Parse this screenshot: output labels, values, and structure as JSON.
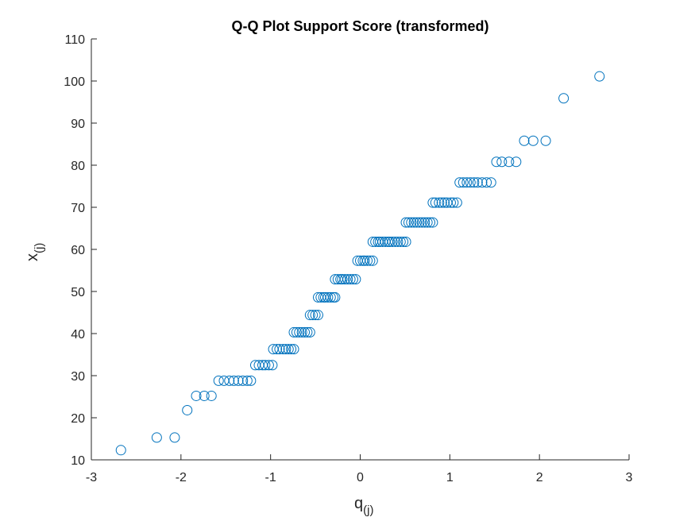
{
  "chart_data": {
    "type": "scatter",
    "title": "Q-Q Plot Support Score (transformed)",
    "xlabel": {
      "main": "q",
      "subscript": "(j)"
    },
    "ylabel": {
      "main": "x",
      "subscript": "(j)"
    },
    "xlim": [
      -3,
      3
    ],
    "ylim": [
      10,
      110
    ],
    "xticks": [
      -3,
      -2,
      -1,
      0,
      1,
      2,
      3
    ],
    "yticks": [
      10,
      20,
      30,
      40,
      50,
      60,
      70,
      80,
      90,
      100,
      110
    ],
    "grid": false,
    "marker": "circle-open",
    "series": [
      {
        "color": "#0072BD",
        "x": [
          -2.67,
          -2.27,
          -2.07,
          -1.93,
          -1.83,
          -1.74,
          -1.66,
          -1.58,
          -1.52,
          -1.46,
          -1.41,
          -1.36,
          -1.31,
          -1.26,
          -1.22,
          -1.17,
          -1.13,
          -1.09,
          -1.06,
          -1.02,
          -0.98,
          -0.97,
          -0.93,
          -0.9,
          -0.86,
          -0.83,
          -0.8,
          -0.77,
          -0.74,
          -0.74,
          -0.71,
          -0.68,
          -0.65,
          -0.62,
          -0.59,
          -0.56,
          -0.56,
          -0.53,
          -0.5,
          -0.47,
          -0.47,
          -0.44,
          -0.41,
          -0.39,
          -0.36,
          -0.33,
          -0.3,
          -0.28,
          -0.28,
          -0.25,
          -0.22,
          -0.2,
          -0.17,
          -0.14,
          -0.11,
          -0.08,
          -0.05,
          -0.03,
          0.0,
          0.03,
          0.05,
          0.08,
          0.11,
          0.14,
          0.14,
          0.17,
          0.2,
          0.22,
          0.25,
          0.28,
          0.31,
          0.33,
          0.36,
          0.39,
          0.42,
          0.45,
          0.48,
          0.51,
          0.51,
          0.54,
          0.57,
          0.6,
          0.63,
          0.66,
          0.69,
          0.72,
          0.75,
          0.78,
          0.81,
          0.81,
          0.84,
          0.88,
          0.91,
          0.94,
          0.97,
          1.01,
          1.04,
          1.08,
          1.11,
          1.15,
          1.19,
          1.23,
          1.27,
          1.31,
          1.36,
          1.41,
          1.46,
          1.52,
          1.58,
          1.66,
          1.74,
          1.83,
          1.93,
          2.07,
          2.27,
          2.67
        ],
        "y": [
          12.3,
          15.3,
          15.3,
          21.8,
          25.2,
          25.2,
          25.2,
          28.8,
          28.8,
          28.8,
          28.8,
          28.8,
          28.8,
          28.8,
          28.8,
          32.5,
          32.5,
          32.5,
          32.5,
          32.5,
          32.5,
          36.3,
          36.3,
          36.3,
          36.3,
          36.3,
          36.3,
          36.3,
          36.3,
          40.3,
          40.3,
          40.3,
          40.3,
          40.3,
          40.3,
          40.3,
          44.4,
          44.4,
          44.4,
          44.4,
          48.6,
          48.6,
          48.6,
          48.6,
          48.6,
          48.6,
          48.6,
          48.6,
          52.9,
          52.9,
          52.9,
          52.9,
          52.9,
          52.9,
          52.9,
          52.9,
          52.9,
          57.3,
          57.3,
          57.3,
          57.3,
          57.3,
          57.3,
          57.3,
          61.8,
          61.8,
          61.8,
          61.8,
          61.8,
          61.8,
          61.8,
          61.8,
          61.8,
          61.8,
          61.8,
          61.8,
          61.8,
          61.8,
          66.4,
          66.4,
          66.4,
          66.4,
          66.4,
          66.4,
          66.4,
          66.4,
          66.4,
          66.4,
          66.4,
          71.1,
          71.1,
          71.1,
          71.1,
          71.1,
          71.1,
          71.1,
          71.1,
          71.1,
          75.9,
          75.9,
          75.9,
          75.9,
          75.9,
          75.9,
          75.9,
          75.9,
          75.9,
          80.8,
          80.8,
          80.8,
          80.8,
          85.8,
          85.8,
          85.8,
          95.9,
          101.1
        ]
      }
    ]
  }
}
